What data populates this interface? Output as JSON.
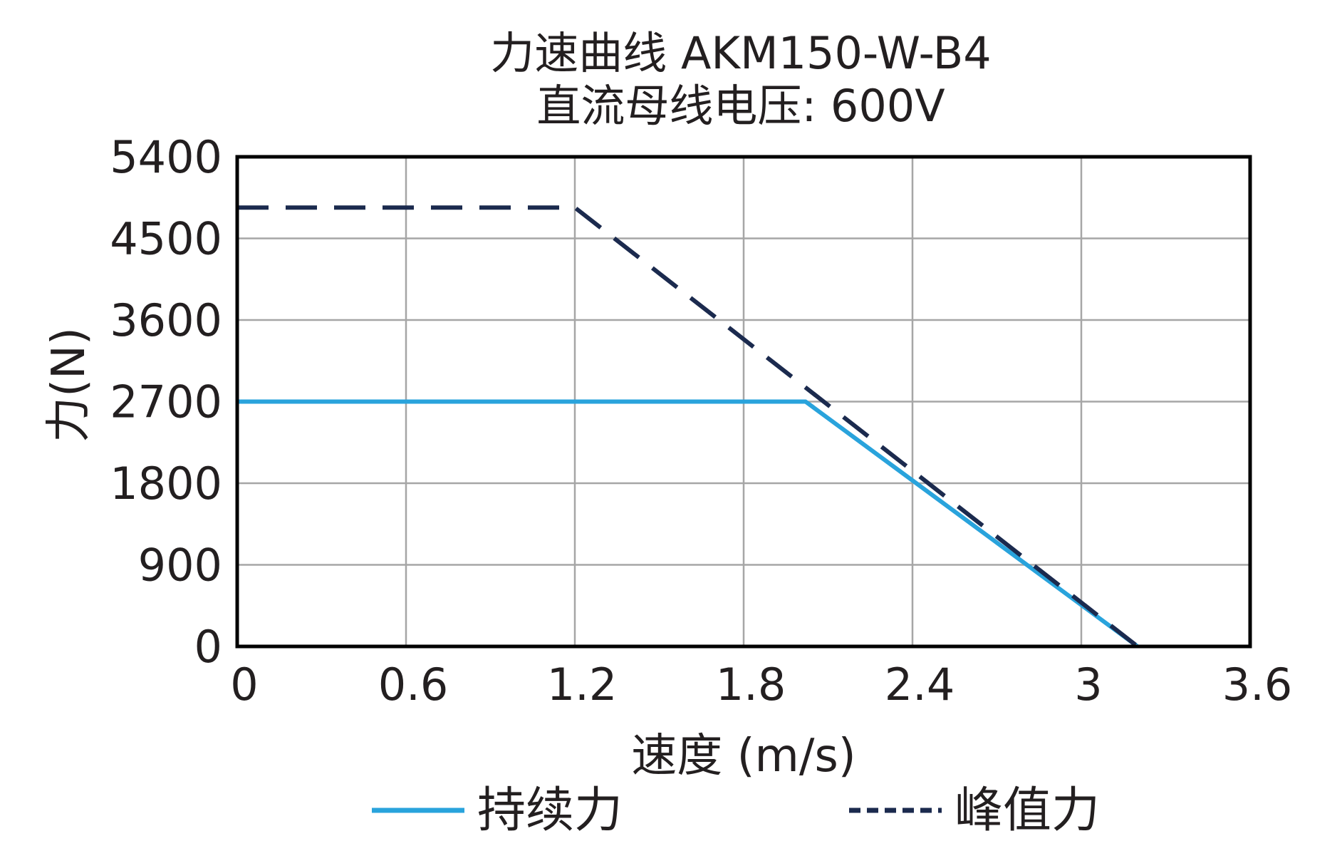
{
  "chart_data": {
    "type": "line",
    "title": "力速曲线 AKM150-W-B4",
    "subtitle": "直流母线电压: 600V",
    "xlabel": "速度 (m/s)",
    "ylabel": "力(N)",
    "xlim": [
      0,
      3.6
    ],
    "ylim": [
      0,
      5400
    ],
    "xticks": [
      0,
      0.6,
      1.2,
      1.8,
      2.4,
      3,
      3.6
    ],
    "xtick_labels": [
      "0",
      "0.6",
      "1.2",
      "1.8",
      "2.4",
      "3",
      "3.6"
    ],
    "yticks": [
      0,
      900,
      1800,
      2700,
      3600,
      4500,
      5400
    ],
    "ytick_labels": [
      "0",
      "900",
      "1800",
      "2700",
      "3600",
      "4500",
      "5400"
    ],
    "grid": true,
    "legend_position": "bottom",
    "series": [
      {
        "name": "持续力",
        "style": "solid",
        "color": "#29a3dc",
        "x": [
          0,
          2.02,
          3.2
        ],
        "y": [
          2700,
          2700,
          0
        ]
      },
      {
        "name": "峰值力",
        "style": "dashed",
        "color": "#1b2a4e",
        "x": [
          0,
          1.2,
          3.2
        ],
        "y": [
          4840,
          4840,
          0
        ]
      }
    ]
  }
}
